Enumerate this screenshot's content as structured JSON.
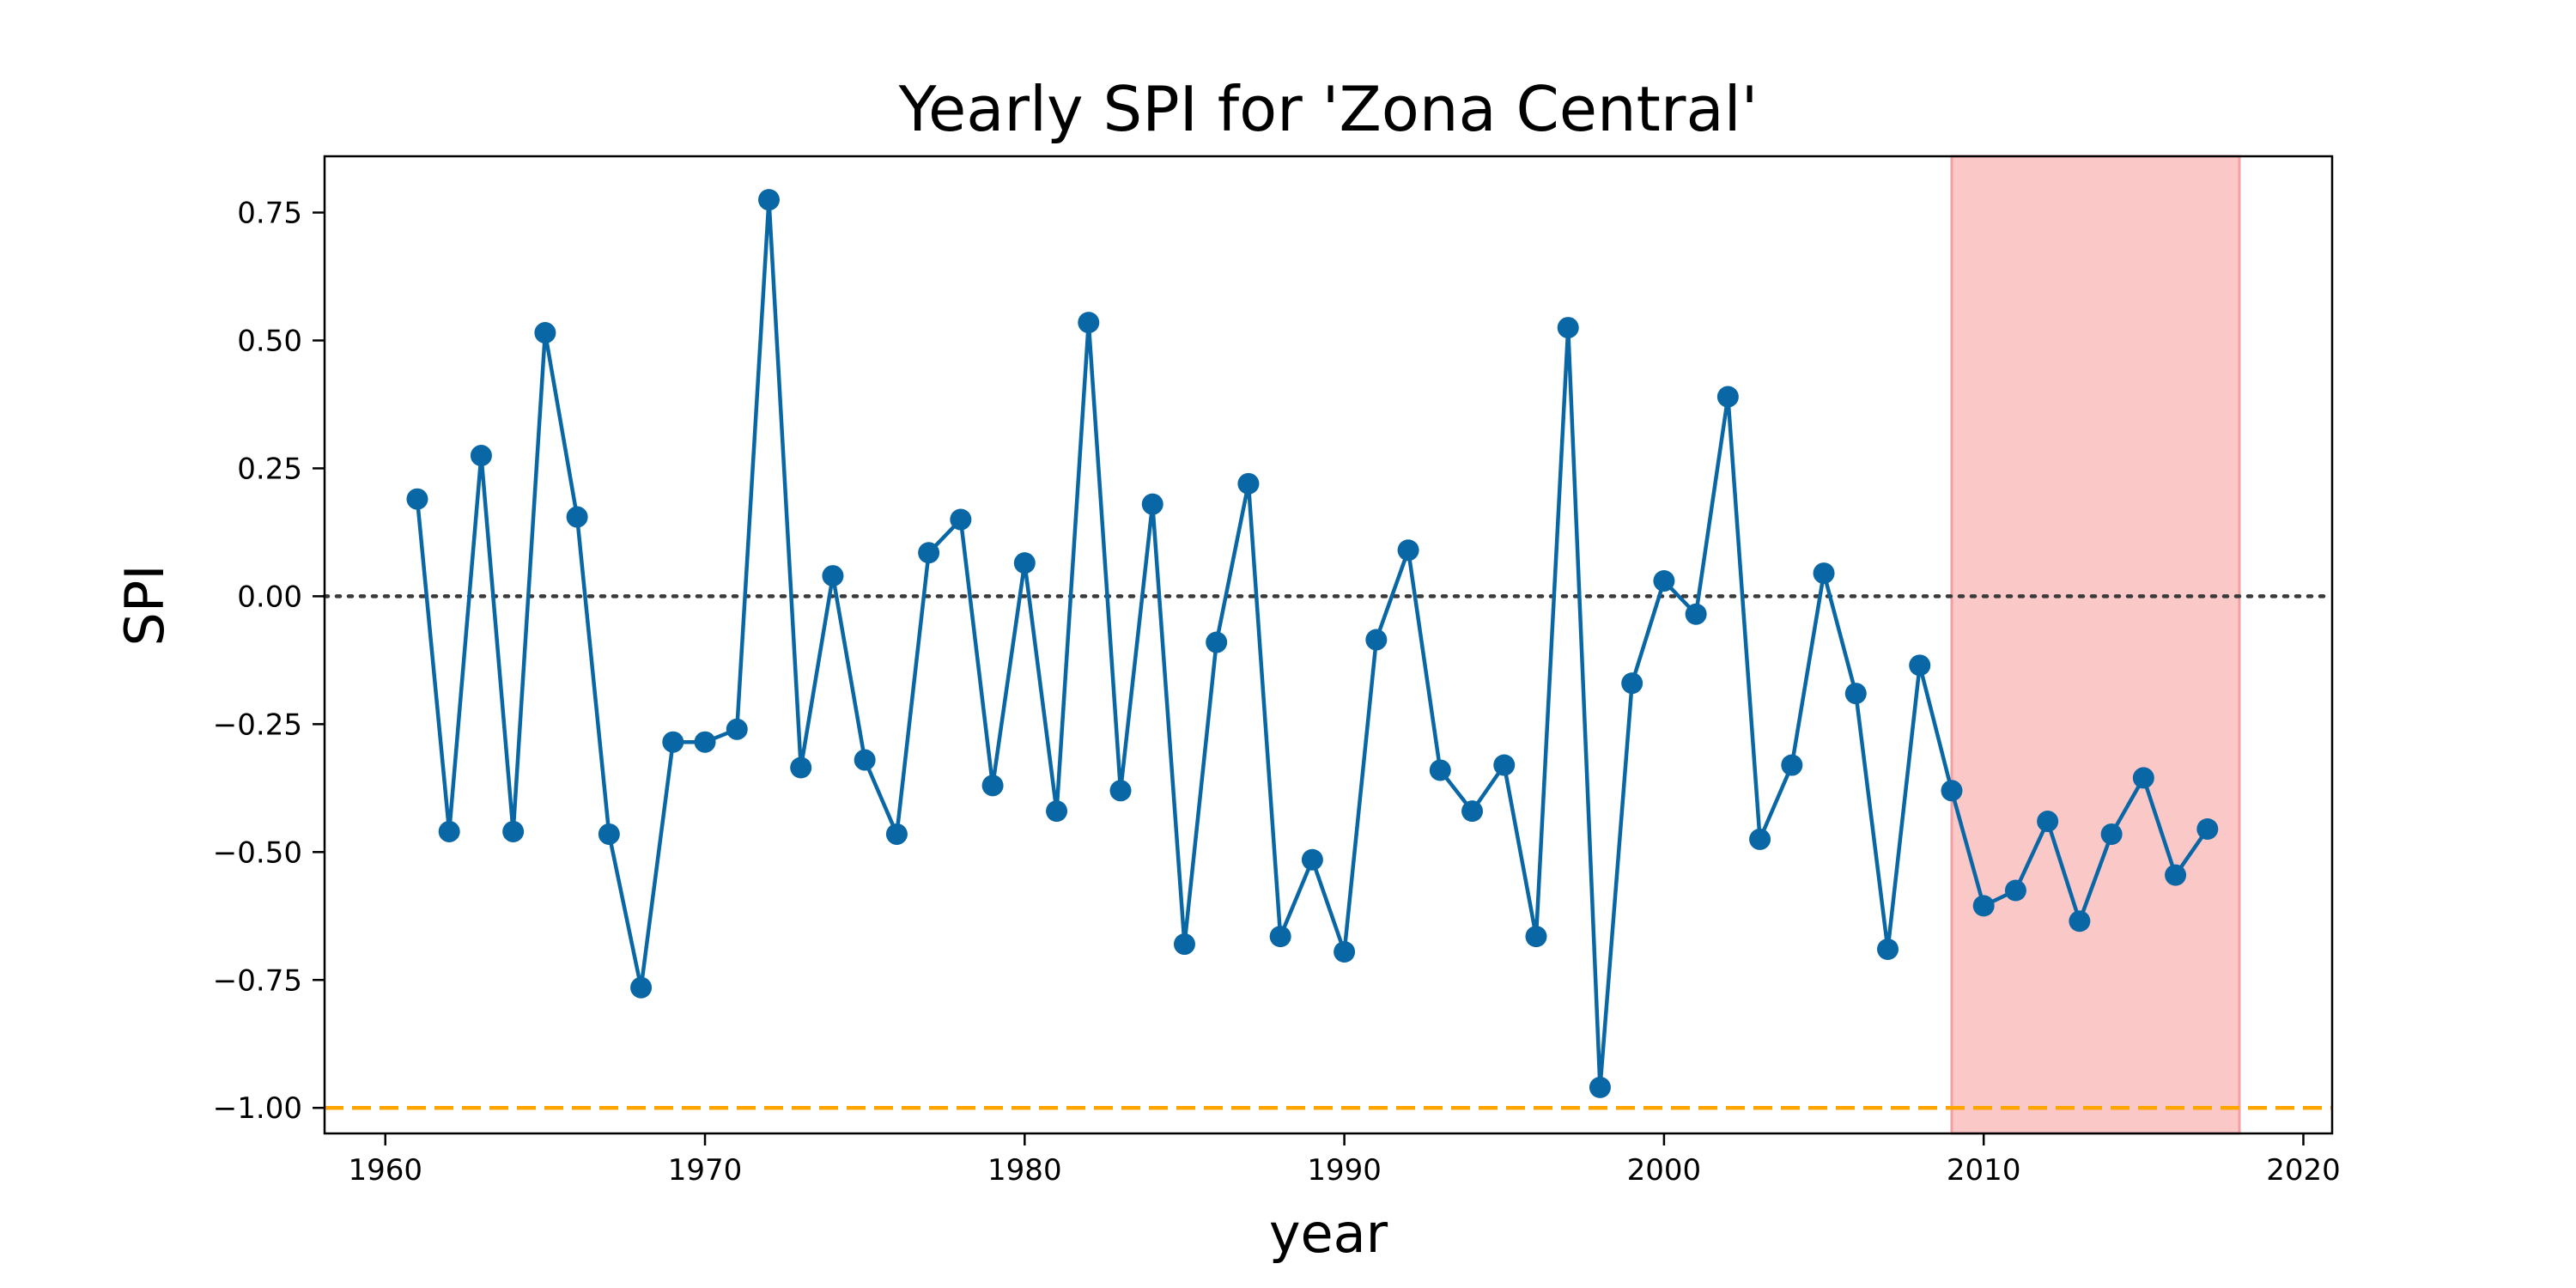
{
  "chart_data": {
    "type": "line",
    "title": "Yearly SPI for 'Zona Central'",
    "xlabel": "year",
    "ylabel": "SPI",
    "xlim": [
      1958.1,
      2020.9
    ],
    "ylim": [
      -1.05,
      0.86
    ],
    "xticks": [
      1960,
      1970,
      1980,
      1990,
      2000,
      2010,
      2020
    ],
    "xtick_labels": [
      "1960",
      "1970",
      "1980",
      "1990",
      "2000",
      "2010",
      "2020"
    ],
    "yticks": [
      0.75,
      0.5,
      0.25,
      0.0,
      -0.25,
      -0.5,
      -0.75,
      -1.0
    ],
    "ytick_labels": [
      "0.75",
      "0.50",
      "0.25",
      "0.00",
      "−0.25",
      "−0.50",
      "−0.75",
      "−1.00"
    ],
    "grid": false,
    "series": [
      {
        "color": "#0a67a6",
        "marker": "circle",
        "x": [
          1961,
          1962,
          1963,
          1964,
          1965,
          1966,
          1967,
          1968,
          1969,
          1970,
          1971,
          1972,
          1973,
          1974,
          1975,
          1976,
          1977,
          1978,
          1979,
          1980,
          1981,
          1982,
          1983,
          1984,
          1985,
          1986,
          1987,
          1988,
          1989,
          1990,
          1991,
          1992,
          1993,
          1994,
          1995,
          1996,
          1997,
          1998,
          1999,
          2000,
          2001,
          2002,
          2003,
          2004,
          2005,
          2006,
          2007,
          2008,
          2009,
          2010,
          2011,
          2012,
          2013,
          2014,
          2015,
          2016,
          2017
        ],
        "y": [
          0.19,
          -0.46,
          0.275,
          -0.46,
          0.515,
          0.155,
          -0.465,
          -0.765,
          -0.285,
          -0.285,
          -0.26,
          0.775,
          -0.335,
          0.04,
          -0.32,
          -0.465,
          0.085,
          0.15,
          -0.37,
          0.065,
          -0.42,
          0.535,
          -0.38,
          0.18,
          -0.68,
          -0.09,
          0.22,
          -0.665,
          -0.515,
          -0.695,
          -0.085,
          0.09,
          -0.34,
          -0.42,
          -0.33,
          -0.665,
          0.525,
          -0.96,
          -0.17,
          0.03,
          -0.035,
          0.39,
          -0.475,
          -0.33,
          0.045,
          -0.19,
          -0.69,
          -0.135,
          -0.38,
          -0.605,
          -0.575,
          -0.44,
          -0.635,
          -0.465,
          -0.355,
          -0.545,
          -0.455
        ]
      }
    ],
    "reference_lines": [
      {
        "orientation": "horizontal",
        "y": 0.0,
        "style": "dotted",
        "color": "#3a3a3a"
      },
      {
        "orientation": "horizontal",
        "y": -1.0,
        "style": "dashed",
        "color": "#ffa500"
      }
    ],
    "highlight_region": {
      "x_start": 2009,
      "x_end": 2018,
      "color": "#fbc8c8",
      "edge_color": "#f2a0a0"
    }
  }
}
